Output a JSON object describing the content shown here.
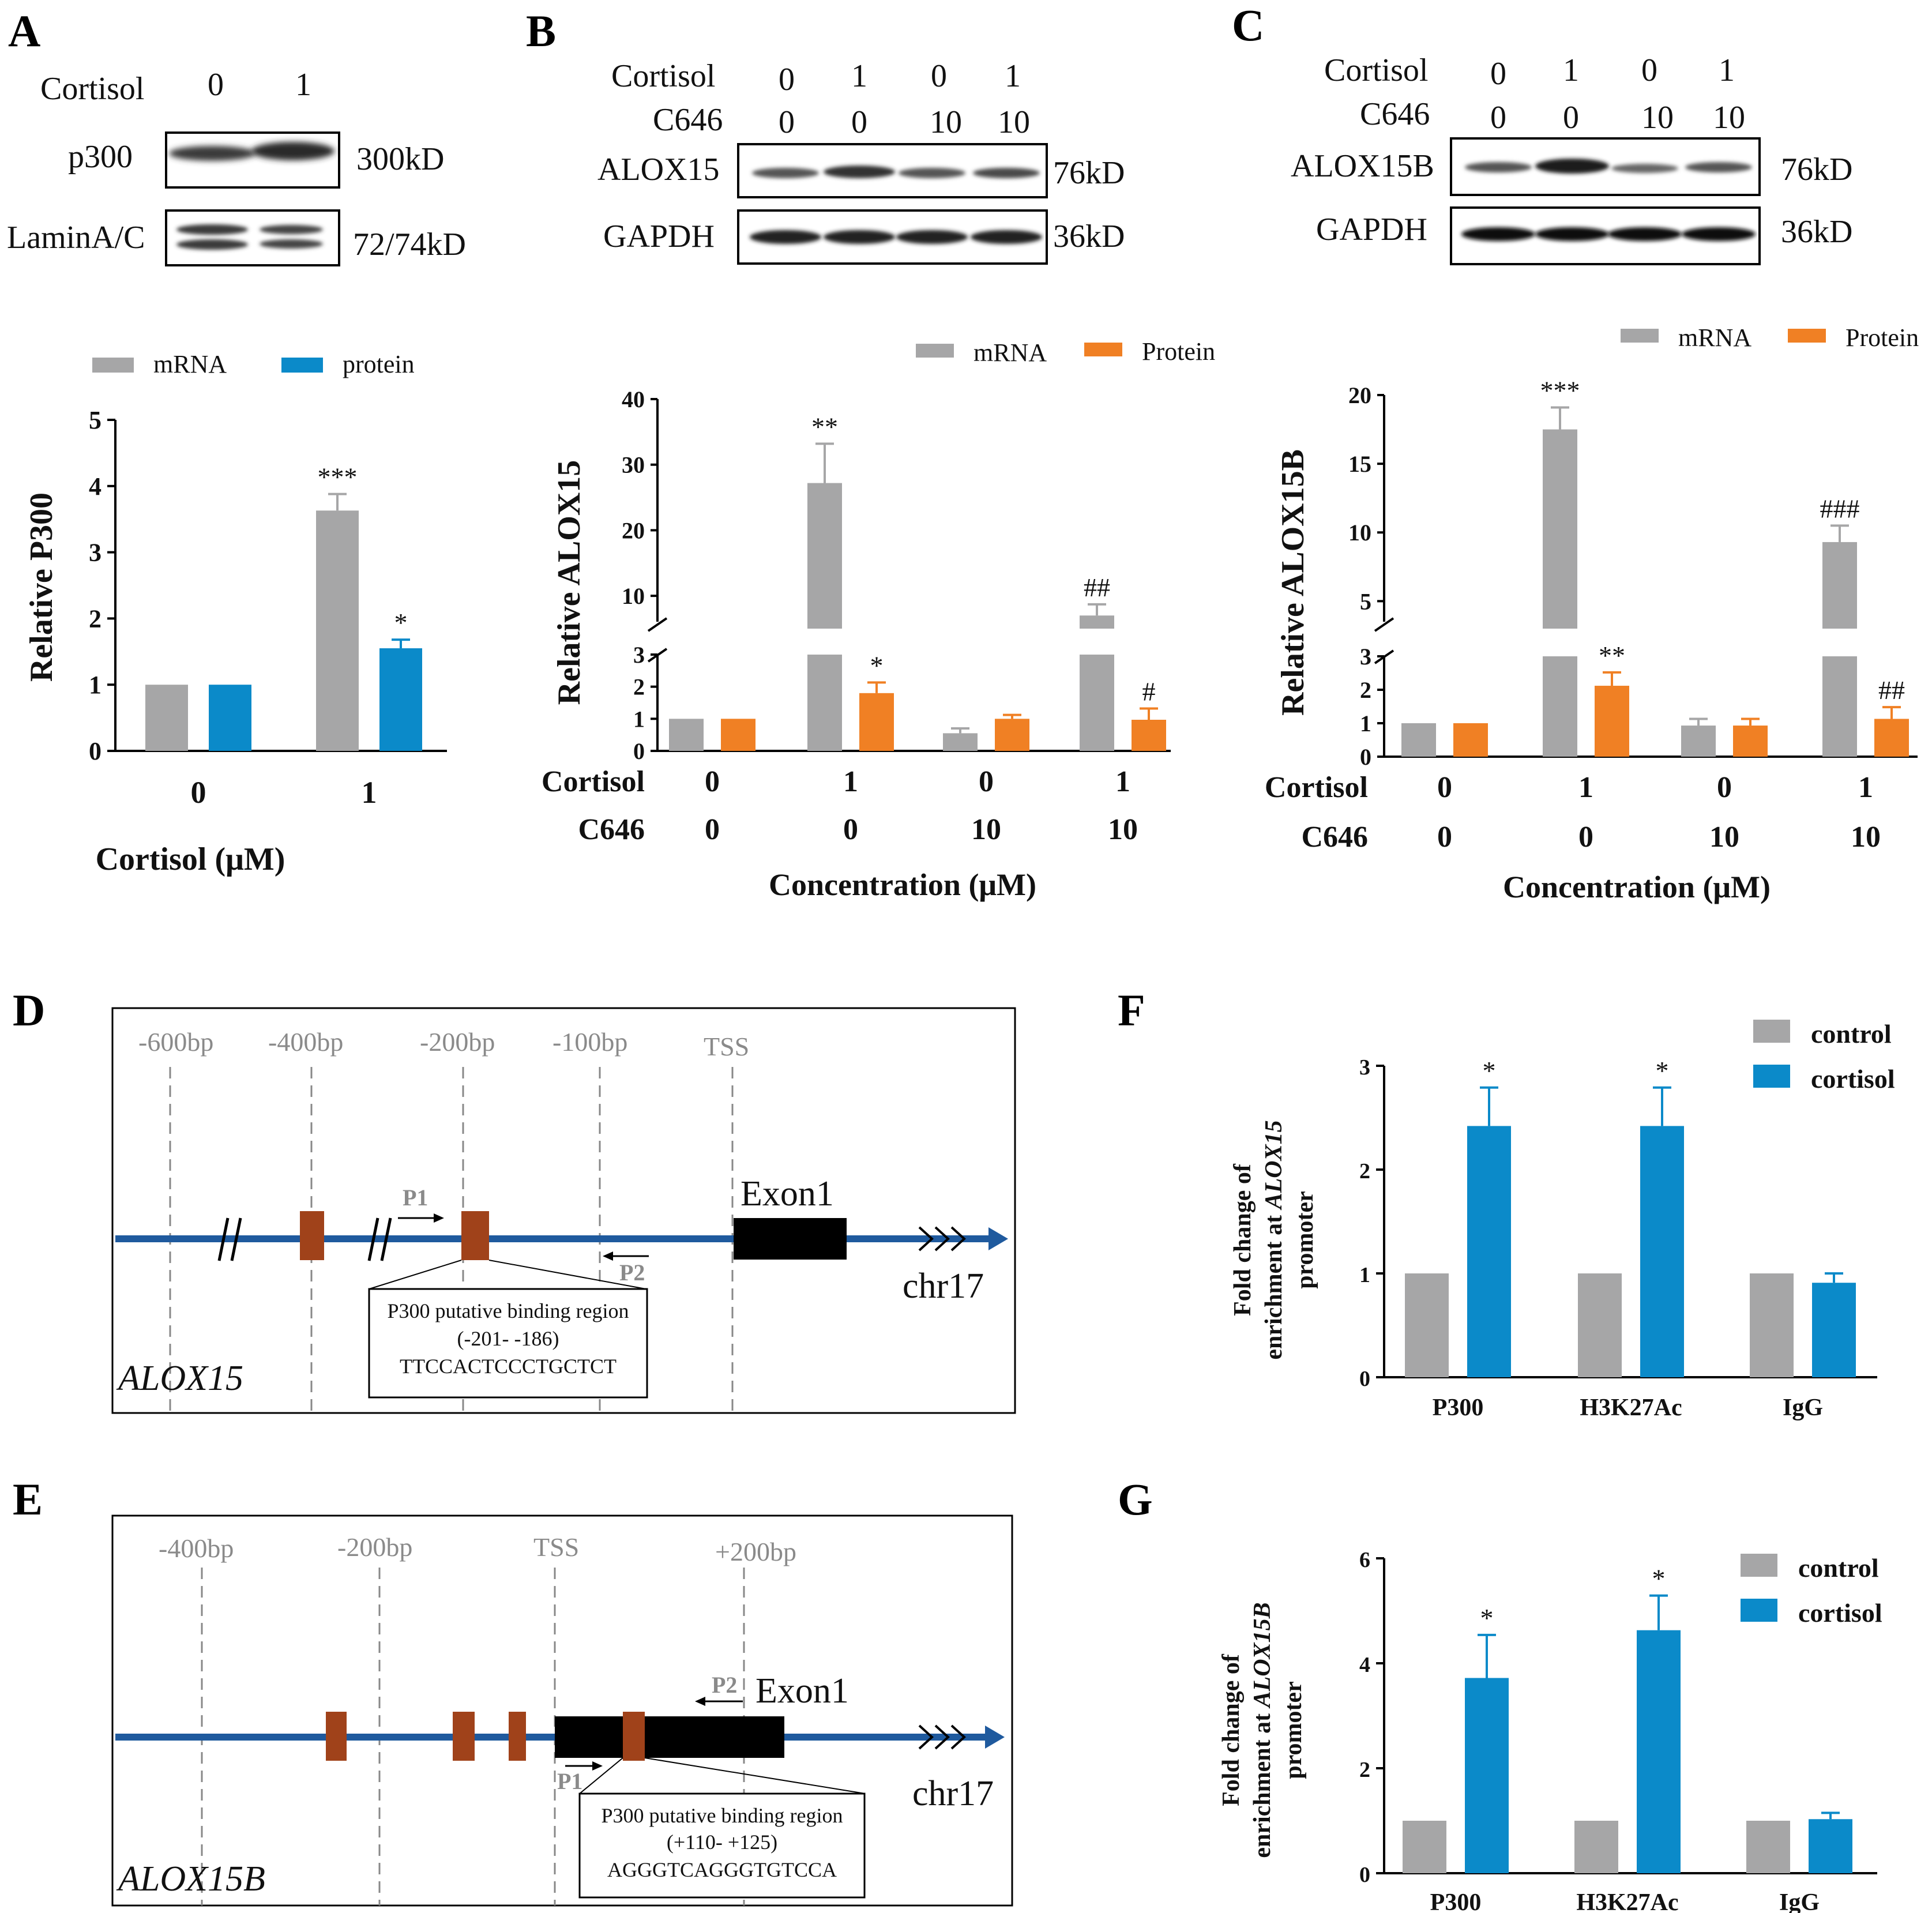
{
  "panels": {
    "A": {
      "letter": "A",
      "blot": {
        "treatment_label": "Cortisol",
        "lanes": [
          "0",
          "1"
        ],
        "rows": [
          {
            "name": "p300",
            "size": "300kD"
          },
          {
            "name": "LaminA/C",
            "size": "72/74kD"
          }
        ]
      }
    },
    "B": {
      "letter": "B",
      "blot": {
        "treatment_labels": [
          "Cortisol",
          "C646"
        ],
        "cortisol": [
          "0",
          "1",
          "0",
          "1"
        ],
        "c646": [
          "0",
          "0",
          "10",
          "10"
        ],
        "rows": [
          {
            "name": "ALOX15",
            "size": "76kD"
          },
          {
            "name": "GAPDH",
            "size": "36kD"
          }
        ]
      }
    },
    "C": {
      "letter": "C",
      "blot": {
        "treatment_labels": [
          "Cortisol",
          "C646"
        ],
        "cortisol": [
          "0",
          "1",
          "0",
          "1"
        ],
        "c646": [
          "0",
          "0",
          "10",
          "10"
        ],
        "rows": [
          {
            "name": "ALOX15B",
            "size": "76kD"
          },
          {
            "name": "GAPDH",
            "size": "36kD"
          }
        ]
      }
    },
    "D": {
      "letter": "D",
      "gene": "ALOX15",
      "positions": [
        "-600bp",
        "-400bp",
        "-200bp",
        "-100bp",
        "TSS"
      ],
      "primers": [
        "P1",
        "P2"
      ],
      "exon": "Exon1",
      "chromosome": "chr17",
      "box_title": "P300 putative binding region",
      "box_range": "(-201- -186)",
      "box_seq": "TTCCACTCCCTGCTCT"
    },
    "E": {
      "letter": "E",
      "gene": "ALOX15B",
      "positions": [
        "-400bp",
        "-200bp",
        "TSS",
        "+200bp"
      ],
      "primers": [
        "P1",
        "P2"
      ],
      "exon": "Exon1",
      "chromosome": "chr17",
      "box_title": "P300 putative binding region",
      "box_range": "(+110- +125)",
      "box_seq": "AGGGTCAGGGTGTCCA"
    },
    "F": {
      "letter": "F"
    },
    "G": {
      "letter": "G"
    }
  },
  "colors": {
    "gray": "#a6a6a7",
    "blue": "#0b8ac9",
    "orange": "#f08024",
    "dna": "#1f5a9e",
    "site": "#a0421a"
  },
  "chart_data": [
    {
      "id": "A",
      "type": "bar",
      "title": "",
      "ylabel": "Relative  P300",
      "xlabel": "Cortisol  (μM)",
      "ylim": [
        0,
        5
      ],
      "yticks": [
        "0",
        "1",
        "2",
        "3",
        "4",
        "5"
      ],
      "categories": [
        "0",
        "1"
      ],
      "series": [
        {
          "name": "mRNA",
          "values": [
            1.0,
            3.63
          ],
          "errors": [
            0,
            0.25
          ],
          "sig": [
            "",
            "***"
          ]
        },
        {
          "name": "protein",
          "values": [
            1.0,
            1.55
          ],
          "errors": [
            0,
            0.13
          ],
          "sig": [
            "",
            "*"
          ]
        }
      ]
    },
    {
      "id": "B",
      "type": "bar",
      "ylabel": "Relative ALOX15",
      "xlabel": "Concentration  (μM)",
      "row_labels": [
        "Cortisol",
        "C646"
      ],
      "cortisol": [
        "0",
        "1",
        "0",
        "1"
      ],
      "c646": [
        "0",
        "0",
        "10",
        "10"
      ],
      "axis_break": {
        "lower": [
          0,
          3
        ],
        "upper": [
          5,
          40
        ]
      },
      "yticks_lower": [
        "0",
        "1",
        "2",
        "3"
      ],
      "yticks_upper": [
        "10",
        "20",
        "30",
        "40"
      ],
      "series": [
        {
          "name": "mRNA",
          "values": [
            1.0,
            27.2,
            0.55,
            7.0
          ],
          "errors": [
            0,
            6.0,
            0.15,
            1.7
          ],
          "sig": [
            "",
            "**",
            "",
            "##"
          ]
        },
        {
          "name": "Protein",
          "values": [
            1.0,
            1.8,
            1.0,
            0.97
          ],
          "errors": [
            0,
            0.33,
            0.12,
            0.35
          ],
          "sig": [
            "",
            "*",
            "",
            "#"
          ]
        }
      ]
    },
    {
      "id": "C",
      "type": "bar",
      "ylabel": "Relative ALOX15B",
      "xlabel": "Concentration  (μM)",
      "row_labels": [
        "Cortisol",
        "C646"
      ],
      "cortisol": [
        "0",
        "1",
        "0",
        "1"
      ],
      "c646": [
        "0",
        "0",
        "10",
        "10"
      ],
      "axis_break": {
        "lower": [
          0,
          3
        ],
        "upper": [
          3,
          20
        ]
      },
      "yticks_lower": [
        "0",
        "1",
        "2",
        "3"
      ],
      "yticks_upper": [
        "5",
        "10",
        "15",
        "20"
      ],
      "series": [
        {
          "name": "mRNA",
          "values": [
            1.0,
            17.5,
            0.93,
            9.3
          ],
          "errors": [
            0,
            1.6,
            0.2,
            1.2
          ],
          "sig": [
            "",
            "***",
            "",
            "###"
          ]
        },
        {
          "name": "Protein",
          "values": [
            1.0,
            2.12,
            0.93,
            1.13
          ],
          "errors": [
            0,
            0.4,
            0.2,
            0.35
          ],
          "sig": [
            "",
            "**",
            "",
            "##"
          ]
        }
      ]
    },
    {
      "id": "F",
      "type": "bar",
      "ylabel_lines": [
        "Fold change of",
        "enrichment  at ",
        "ALOX15",
        "promoter"
      ],
      "ylim": [
        0,
        3
      ],
      "yticks": [
        "0",
        "1",
        "2",
        "3"
      ],
      "categories": [
        "P300",
        "H3K27Ac",
        "IgG"
      ],
      "series": [
        {
          "name": "control",
          "values": [
            1.0,
            1.0,
            1.0
          ],
          "errors": [
            0,
            0,
            0
          ],
          "sig": [
            "",
            "",
            ""
          ]
        },
        {
          "name": "cortisol",
          "values": [
            2.42,
            2.42,
            0.91
          ],
          "errors": [
            0.37,
            0.37,
            0.09
          ],
          "sig": [
            "*",
            "*",
            ""
          ]
        }
      ]
    },
    {
      "id": "G",
      "type": "bar",
      "ylabel_lines": [
        "Fold change of",
        "enrichment  at ",
        "ALOX15B",
        "promoter"
      ],
      "ylim": [
        0,
        6
      ],
      "yticks": [
        "0",
        "2",
        "4",
        "6"
      ],
      "categories": [
        "P300",
        "H3K27Ac",
        "IgG"
      ],
      "series": [
        {
          "name": "control",
          "values": [
            1.0,
            1.0,
            1.0
          ],
          "errors": [
            0,
            0,
            0
          ],
          "sig": [
            "",
            "",
            ""
          ]
        },
        {
          "name": "cortisol",
          "values": [
            3.72,
            4.63,
            1.03
          ],
          "errors": [
            0.82,
            0.66,
            0.12
          ],
          "sig": [
            "*",
            "*",
            ""
          ]
        }
      ]
    }
  ]
}
